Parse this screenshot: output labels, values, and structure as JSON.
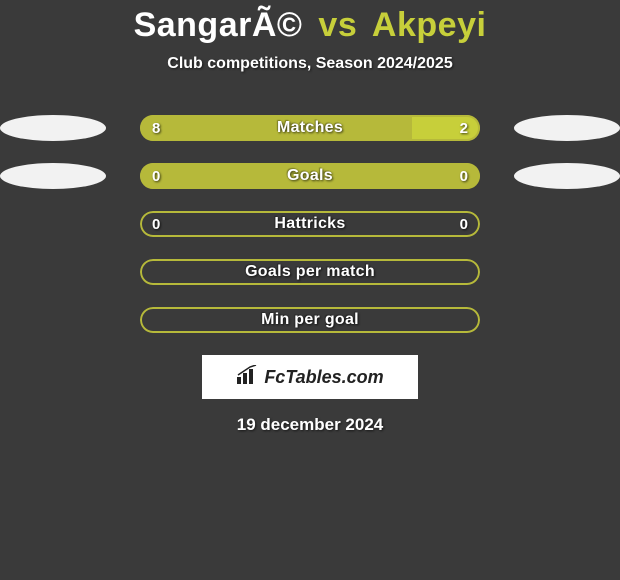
{
  "colors": {
    "background": "#3a3a3a",
    "accent_olive": "#b6b93a",
    "accent_olive_light": "#c7cf3a",
    "white": "#ffffff"
  },
  "header": {
    "player1": "SangarÃ©",
    "vs": "vs",
    "player2": "Akpeyi",
    "subtitle": "Club competitions, Season 2024/2025"
  },
  "stats": [
    {
      "label": "Matches",
      "left_value": "8",
      "right_value": "2",
      "left_pct": 80,
      "right_pct": 20,
      "left_fill": "#b6b93a",
      "right_fill": "#c7cf3a",
      "border_color": "#b6b93a",
      "show_ellipses": true
    },
    {
      "label": "Goals",
      "left_value": "0",
      "right_value": "0",
      "left_pct": 100,
      "right_pct": 0,
      "left_fill": "#b6b93a",
      "right_fill": "#b6b93a",
      "border_color": "#b6b93a",
      "show_ellipses": true
    },
    {
      "label": "Hattricks",
      "left_value": "0",
      "right_value": "0",
      "left_pct": 0,
      "right_pct": 0,
      "left_fill": "transparent",
      "right_fill": "transparent",
      "border_color": "#b6b93a",
      "show_ellipses": false
    },
    {
      "label": "Goals per match",
      "left_value": "",
      "right_value": "",
      "left_pct": 0,
      "right_pct": 0,
      "left_fill": "transparent",
      "right_fill": "transparent",
      "border_color": "#b6b93a",
      "show_ellipses": false
    },
    {
      "label": "Min per goal",
      "left_value": "",
      "right_value": "",
      "left_pct": 0,
      "right_pct": 0,
      "left_fill": "transparent",
      "right_fill": "transparent",
      "border_color": "#b6b93a",
      "show_ellipses": false
    }
  ],
  "logo": {
    "text": "FcTables.com"
  },
  "footer": {
    "date": "19 december 2024"
  }
}
